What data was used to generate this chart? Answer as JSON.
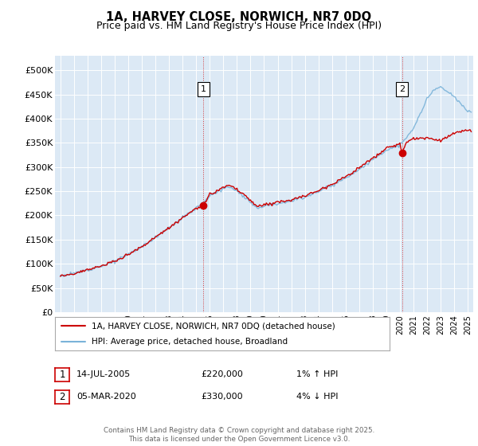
{
  "title": "1A, HARVEY CLOSE, NORWICH, NR7 0DQ",
  "subtitle": "Price paid vs. HM Land Registry's House Price Index (HPI)",
  "legend_line1": "1A, HARVEY CLOSE, NORWICH, NR7 0DQ (detached house)",
  "legend_line2": "HPI: Average price, detached house, Broadland",
  "annotation1_label": "1",
  "annotation1_date": "14-JUL-2005",
  "annotation1_price": "£220,000",
  "annotation1_hpi": "1% ↑ HPI",
  "annotation2_label": "2",
  "annotation2_date": "05-MAR-2020",
  "annotation2_price": "£330,000",
  "annotation2_hpi": "4% ↓ HPI",
  "footer": "Contains HM Land Registry data © Crown copyright and database right 2025.\nThis data is licensed under the Open Government Licence v3.0.",
  "hpi_color": "#7ab3d9",
  "price_color": "#cc0000",
  "marker_color": "#cc0000",
  "vline_color": "#cc0000",
  "plot_bg_color": "#dce9f5",
  "yticks": [
    0,
    50000,
    100000,
    150000,
    200000,
    250000,
    300000,
    350000,
    400000,
    450000,
    500000
  ],
  "ylim": [
    0,
    530000
  ],
  "sale1_year": 2005.54,
  "sale1_price": 220000,
  "sale2_year": 2020.17,
  "sale2_price": 330000,
  "hpi_keypoints_x": [
    1995,
    1996,
    1997,
    1998,
    1999,
    2000,
    2001,
    2002,
    2003,
    2004,
    2005,
    2006,
    2007,
    2007.5,
    2008.5,
    2009.5,
    2010,
    2011,
    2012,
    2013,
    2014,
    2015,
    2016,
    2017,
    2018,
    2019,
    2019.5,
    2020,
    2020.5,
    2021,
    2021.5,
    2022,
    2022.5,
    2023,
    2023.5,
    2024,
    2024.5,
    2025
  ],
  "hpi_keypoints_y": [
    75000,
    80000,
    88000,
    95000,
    105000,
    120000,
    135000,
    155000,
    175000,
    195000,
    215000,
    240000,
    255000,
    260000,
    240000,
    215000,
    220000,
    225000,
    230000,
    238000,
    250000,
    262000,
    278000,
    295000,
    315000,
    335000,
    340000,
    345000,
    360000,
    380000,
    410000,
    440000,
    460000,
    465000,
    455000,
    445000,
    430000,
    415000
  ],
  "price_keypoints_x": [
    1995,
    1996,
    1997,
    1998,
    1999,
    2000,
    2001,
    2002,
    2003,
    2004,
    2005,
    2005.54,
    2006,
    2007,
    2007.5,
    2008.5,
    2009.5,
    2010,
    2011,
    2012,
    2013,
    2014,
    2015,
    2016,
    2017,
    2018,
    2019,
    2019.5,
    2020,
    2020.17,
    2020.5,
    2021,
    2022,
    2023,
    2024,
    2025
  ],
  "price_keypoints_y": [
    75000,
    80000,
    88000,
    95000,
    105000,
    120000,
    135000,
    155000,
    175000,
    195000,
    215000,
    220000,
    242000,
    258000,
    263000,
    243000,
    218000,
    222000,
    228000,
    232000,
    240000,
    252000,
    265000,
    280000,
    298000,
    318000,
    338000,
    343000,
    348000,
    330000,
    352000,
    358000,
    360000,
    355000,
    370000,
    375000
  ]
}
